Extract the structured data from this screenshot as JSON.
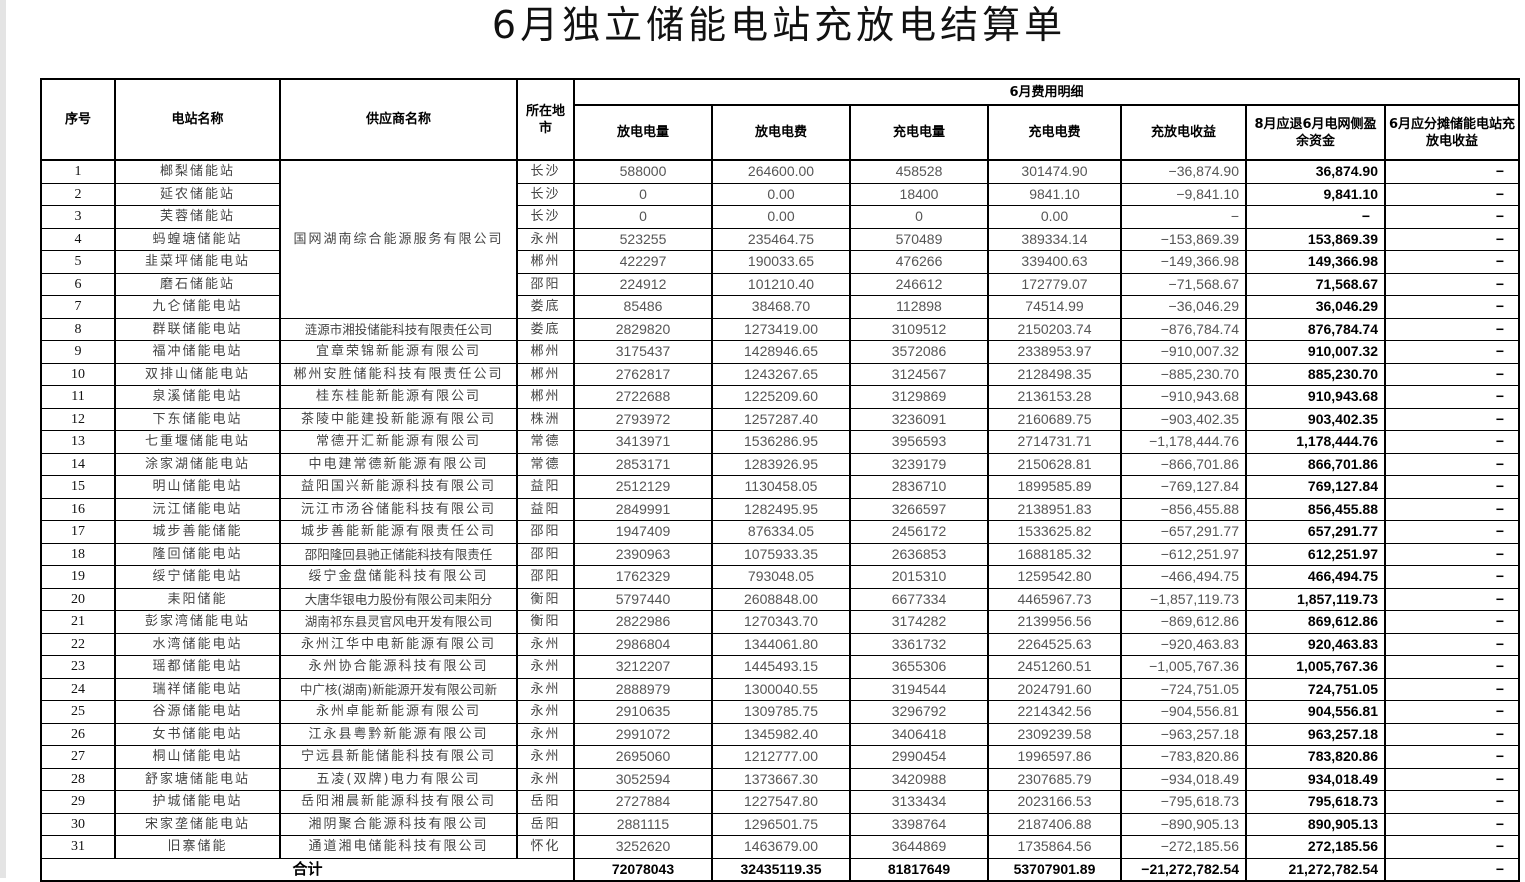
{
  "title": "6月独立储能电站充放电结算单",
  "headers": {
    "seq": "序号",
    "station": "电站名称",
    "supplier": "供应商名称",
    "city": "所在地市",
    "group": "6月费用明细",
    "discharge_kwh": "放电电量",
    "discharge_fee": "放电电费",
    "charge_kwh": "充电电量",
    "charge_fee": "充电电费",
    "revenue": "充放电收益",
    "refund": "8月应退6月电网侧盈余资金",
    "share": "6月应分摊储能电站充放电收益"
  },
  "rows": [
    {
      "seq": "1",
      "station": "榔梨储能站",
      "supplier": "国网湖南综合能源服务有限公司",
      "city": "长沙",
      "dk": "588000",
      "df": "264600.00",
      "ck": "458528",
      "cf": "301474.90",
      "rev": "−36,874.90",
      "refund": "36,874.90",
      "share": "−"
    },
    {
      "seq": "2",
      "station": "延农储能站",
      "supplier": "国网湖南综合能源服务有限公司",
      "city": "长沙",
      "dk": "0",
      "df": "0.00",
      "ck": "18400",
      "cf": "9841.10",
      "rev": "−9,841.10",
      "refund": "9,841.10",
      "share": "−"
    },
    {
      "seq": "3",
      "station": "芙蓉储能站",
      "supplier": "国网湖南综合能源服务有限公司",
      "city": "长沙",
      "dk": "0",
      "df": "0.00",
      "ck": "0",
      "cf": "0.00",
      "rev": "−",
      "refund": "−",
      "share": "−"
    },
    {
      "seq": "4",
      "station": "蚂蝗塘储能站",
      "supplier": "国网湖南综合能源服务有限公司",
      "city": "永州",
      "dk": "523255",
      "df": "235464.75",
      "ck": "570489",
      "cf": "389334.14",
      "rev": "−153,869.39",
      "refund": "153,869.39",
      "share": "−"
    },
    {
      "seq": "5",
      "station": "韭菜坪储能电站",
      "supplier": "国网湖南综合能源服务有限公司",
      "city": "郴州",
      "dk": "422297",
      "df": "190033.65",
      "ck": "476266",
      "cf": "339400.63",
      "rev": "−149,366.98",
      "refund": "149,366.98",
      "share": "−"
    },
    {
      "seq": "6",
      "station": "磨石储能站",
      "supplier": "国网湖南综合能源服务有限公司",
      "city": "邵阳",
      "dk": "224912",
      "df": "101210.40",
      "ck": "246612",
      "cf": "172779.07",
      "rev": "−71,568.67",
      "refund": "71,568.67",
      "share": "−"
    },
    {
      "seq": "7",
      "station": "九仑储能电站",
      "supplier": "国网湖南综合能源服务有限公司",
      "city": "娄底",
      "dk": "85486",
      "df": "38468.70",
      "ck": "112898",
      "cf": "74514.99",
      "rev": "−36,046.29",
      "refund": "36,046.29",
      "share": "−"
    },
    {
      "seq": "8",
      "station": "群联储能电站",
      "supplier": "涟源市湘投储能科技有限责任公司",
      "city": "娄底",
      "dk": "2829820",
      "df": "1273419.00",
      "ck": "3109512",
      "cf": "2150203.74",
      "rev": "−876,784.74",
      "refund": "876,784.74",
      "share": "−"
    },
    {
      "seq": "9",
      "station": "福冲储能电站",
      "supplier": "宜章荣锦新能源有限公司",
      "city": "郴州",
      "dk": "3175437",
      "df": "1428946.65",
      "ck": "3572086",
      "cf": "2338953.97",
      "rev": "−910,007.32",
      "refund": "910,007.32",
      "share": "−"
    },
    {
      "seq": "10",
      "station": "双排山储能电站",
      "supplier": "郴州安胜储能科技有限责任公司",
      "city": "郴州",
      "dk": "2762817",
      "df": "1243267.65",
      "ck": "3124567",
      "cf": "2128498.35",
      "rev": "−885,230.70",
      "refund": "885,230.70",
      "share": "−"
    },
    {
      "seq": "11",
      "station": "泉溪储能电站",
      "supplier": "桂东桂能新能源有限公司",
      "city": "郴州",
      "dk": "2722688",
      "df": "1225209.60",
      "ck": "3129869",
      "cf": "2136153.28",
      "rev": "−910,943.68",
      "refund": "910,943.68",
      "share": "−"
    },
    {
      "seq": "12",
      "station": "下东储能电站",
      "supplier": "茶陵中能建投新能源有限公司",
      "city": "株洲",
      "dk": "2793972",
      "df": "1257287.40",
      "ck": "3236091",
      "cf": "2160689.75",
      "rev": "−903,402.35",
      "refund": "903,402.35",
      "share": "−"
    },
    {
      "seq": "13",
      "station": "七重堰储能电站",
      "supplier": "常德开汇新能源有限公司",
      "city": "常德",
      "dk": "3413971",
      "df": "1536286.95",
      "ck": "3956593",
      "cf": "2714731.71",
      "rev": "−1,178,444.76",
      "refund": "1,178,444.76",
      "share": "−"
    },
    {
      "seq": "14",
      "station": "涂家湖储能电站",
      "supplier": "中电建常德新能源有限公司",
      "city": "常德",
      "dk": "2853171",
      "df": "1283926.95",
      "ck": "3239179",
      "cf": "2150628.81",
      "rev": "−866,701.86",
      "refund": "866,701.86",
      "share": "−"
    },
    {
      "seq": "15",
      "station": "明山储能电站",
      "supplier": "益阳国兴新能源科技有限公司",
      "city": "益阳",
      "dk": "2512129",
      "df": "1130458.05",
      "ck": "2836710",
      "cf": "1899585.89",
      "rev": "−769,127.84",
      "refund": "769,127.84",
      "share": "−"
    },
    {
      "seq": "16",
      "station": "沅江储能电站",
      "supplier": "沅江市汤谷储能科技有限公司",
      "city": "益阳",
      "dk": "2849991",
      "df": "1282495.95",
      "ck": "3266597",
      "cf": "2138951.83",
      "rev": "−856,455.88",
      "refund": "856,455.88",
      "share": "−"
    },
    {
      "seq": "17",
      "station": "城步善能储能",
      "supplier": "城步善能新能源有限责任公司",
      "city": "邵阳",
      "dk": "1947409",
      "df": "876334.05",
      "ck": "2456172",
      "cf": "1533625.82",
      "rev": "−657,291.77",
      "refund": "657,291.77",
      "share": "−"
    },
    {
      "seq": "18",
      "station": "隆回储能电站",
      "supplier": "邵阳隆回县驰正储能科技有限责任",
      "city": "邵阳",
      "dk": "2390963",
      "df": "1075933.35",
      "ck": "2636853",
      "cf": "1688185.32",
      "rev": "−612,251.97",
      "refund": "612,251.97",
      "share": "−"
    },
    {
      "seq": "19",
      "station": "绥宁储能电站",
      "supplier": "绥宁金盘储能科技有限公司",
      "city": "邵阳",
      "dk": "1762329",
      "df": "793048.05",
      "ck": "2015310",
      "cf": "1259542.80",
      "rev": "−466,494.75",
      "refund": "466,494.75",
      "share": "−"
    },
    {
      "seq": "20",
      "station": "耒阳储能",
      "supplier": "大唐华银电力股份有限公司耒阳分",
      "city": "衡阳",
      "dk": "5797440",
      "df": "2608848.00",
      "ck": "6677334",
      "cf": "4465967.73",
      "rev": "−1,857,119.73",
      "refund": "1,857,119.73",
      "share": "−"
    },
    {
      "seq": "21",
      "station": "彭家湾储能电站",
      "supplier": "湖南祁东县灵官风电开发有限公司",
      "city": "衡阳",
      "dk": "2822986",
      "df": "1270343.70",
      "ck": "3174282",
      "cf": "2139956.56",
      "rev": "−869,612.86",
      "refund": "869,612.86",
      "share": "−"
    },
    {
      "seq": "22",
      "station": "水湾储能电站",
      "supplier": "永州江华中电新能源有限公司",
      "city": "永州",
      "dk": "2986804",
      "df": "1344061.80",
      "ck": "3361732",
      "cf": "2264525.63",
      "rev": "−920,463.83",
      "refund": "920,463.83",
      "share": "−"
    },
    {
      "seq": "23",
      "station": "瑶都储能电站",
      "supplier": "永州协合能源科技有限公司",
      "city": "永州",
      "dk": "3212207",
      "df": "1445493.15",
      "ck": "3655306",
      "cf": "2451260.51",
      "rev": "−1,005,767.36",
      "refund": "1,005,767.36",
      "share": "−"
    },
    {
      "seq": "24",
      "station": "瑞祥储能电站",
      "supplier": "中广核(湖南)新能源开发有限公司新",
      "city": "永州",
      "dk": "2888979",
      "df": "1300040.55",
      "ck": "3194544",
      "cf": "2024791.60",
      "rev": "−724,751.05",
      "refund": "724,751.05",
      "share": "−"
    },
    {
      "seq": "25",
      "station": "谷源储能电站",
      "supplier": "永州卓能新能源有限公司",
      "city": "永州",
      "dk": "2910635",
      "df": "1309785.75",
      "ck": "3296792",
      "cf": "2214342.56",
      "rev": "−904,556.81",
      "refund": "904,556.81",
      "share": "−"
    },
    {
      "seq": "26",
      "station": "女书储能电站",
      "supplier": "江永县粤黔新能源有限公司",
      "city": "永州",
      "dk": "2991072",
      "df": "1345982.40",
      "ck": "3406418",
      "cf": "2309239.58",
      "rev": "−963,257.18",
      "refund": "963,257.18",
      "share": "−"
    },
    {
      "seq": "27",
      "station": "桐山储能电站",
      "supplier": "宁远县新能储能科技有限公司",
      "city": "永州",
      "dk": "2695060",
      "df": "1212777.00",
      "ck": "2990454",
      "cf": "1996597.86",
      "rev": "−783,820.86",
      "refund": "783,820.86",
      "share": "−"
    },
    {
      "seq": "28",
      "station": "舒家塘储能电站",
      "supplier": "五凌(双牌)电力有限公司",
      "city": "永州",
      "dk": "3052594",
      "df": "1373667.30",
      "ck": "3420988",
      "cf": "2307685.79",
      "rev": "−934,018.49",
      "refund": "934,018.49",
      "share": "−"
    },
    {
      "seq": "29",
      "station": "护城储能电站",
      "supplier": "岳阳湘晨新能源科技有限公司",
      "city": "岳阳",
      "dk": "2727884",
      "df": "1227547.80",
      "ck": "3133434",
      "cf": "2023166.53",
      "rev": "−795,618.73",
      "refund": "795,618.73",
      "share": "−"
    },
    {
      "seq": "30",
      "station": "宋家垄储能电站",
      "supplier": "湘阴聚合能源科技有限公司",
      "city": "岳阳",
      "dk": "2881115",
      "df": "1296501.75",
      "ck": "3398764",
      "cf": "2187406.88",
      "rev": "−890,905.13",
      "refund": "890,905.13",
      "share": "−"
    },
    {
      "seq": "31",
      "station": "旧寨储能",
      "supplier": "通道湘电储能科技有限公司",
      "city": "怀化",
      "dk": "3252620",
      "df": "1463679.00",
      "ck": "3644869",
      "cf": "1735864.56",
      "rev": "−272,185.56",
      "refund": "272,185.56",
      "share": "−"
    }
  ],
  "total": {
    "label": "合计",
    "dk": "72078043",
    "df": "32435119.35",
    "ck": "81817649",
    "cf": "53707901.89",
    "rev": "−21,272,782.54",
    "refund": "21,272,782.54",
    "share": "−"
  }
}
